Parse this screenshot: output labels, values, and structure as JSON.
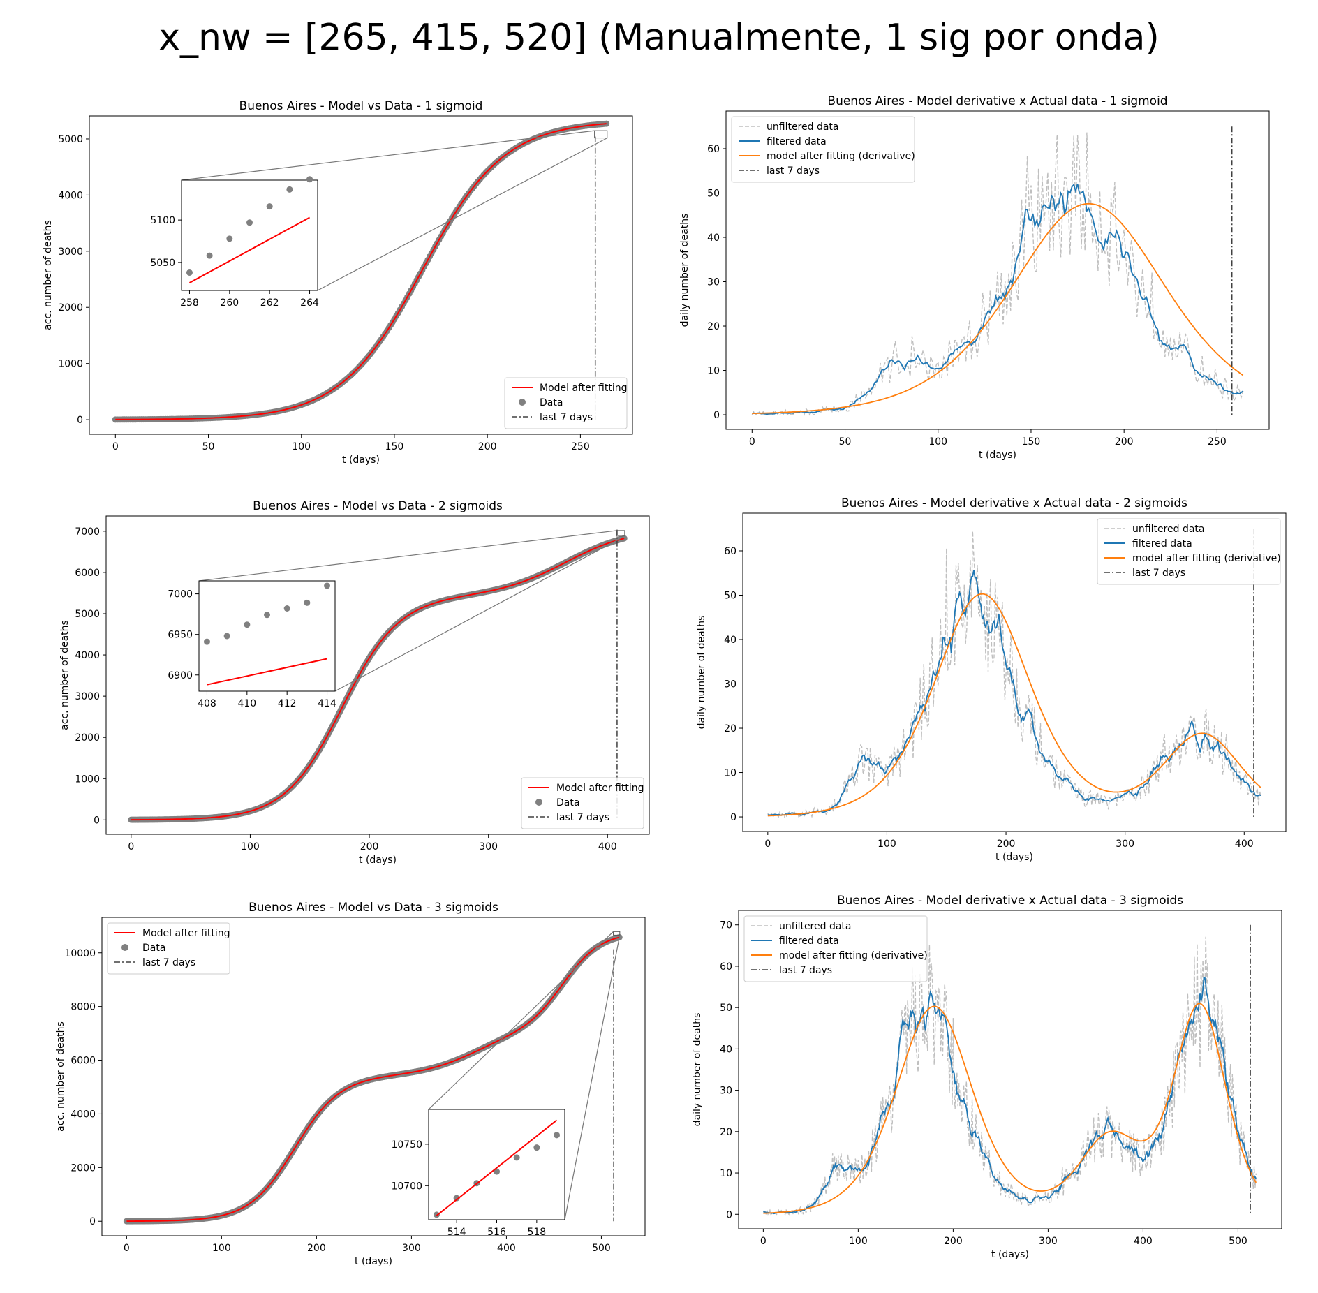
{
  "suptitle": "x_nw = [265, 415, 520] (Manualmente, 1 sig por onda)",
  "colors": {
    "model_red": "#ff0000",
    "data_gray": "#808080",
    "unfiltered": "#bfbfbf",
    "filtered": "#1f77b4",
    "model_orange": "#ff7f0e",
    "last7": "#404040"
  },
  "chart_data": [
    {
      "id": "cum1",
      "type": "scatter",
      "title": "Buenos Aires - Model vs Data - 1 sigmoid",
      "xlabel": "t (days)",
      "ylabel": "acc. number of deaths",
      "xlim": [
        -14,
        278
      ],
      "ylim": [
        -260,
        5410
      ],
      "xticks": [
        0,
        50,
        100,
        150,
        200,
        250
      ],
      "yticks": [
        0,
        1000,
        2000,
        3000,
        4000,
        5000
      ],
      "legend_position": "lower right",
      "legend": [
        "Model after fitting",
        "Data",
        "last 7 days"
      ],
      "last7_x": 258,
      "model": {
        "name": "Model after fitting",
        "components": [
          {
            "a": 5330,
            "t0": 165,
            "s": 22
          }
        ]
      },
      "data_range": [
        0,
        264
      ],
      "inset": {
        "xlim": [
          257.6,
          264.4
        ],
        "ylim": [
          5017,
          5147
        ],
        "xticks": [
          258,
          260,
          262,
          264
        ],
        "yticks": [
          5050,
          5100
        ],
        "x": [
          258,
          259,
          260,
          261,
          262,
          263,
          264
        ],
        "y": [
          5038,
          5058,
          5078,
          5097,
          5116,
          5136,
          5148
        ],
        "model_line": {
          "x": [
            258,
            264
          ],
          "y": [
            5026,
            5103
          ]
        },
        "placement": "upper left"
      }
    },
    {
      "id": "der1",
      "type": "line",
      "title": "Buenos Aires - Model derivative x Actual data - 1 sigmoid",
      "xlabel": "t (days)",
      "ylabel": "daily number of deaths",
      "xlim": [
        -14,
        278
      ],
      "ylim": [
        -3.3,
        68.5
      ],
      "xticks": [
        0,
        50,
        100,
        150,
        200,
        250
      ],
      "yticks": [
        0,
        10,
        20,
        30,
        40,
        50,
        60
      ],
      "legend_position": "upper left",
      "legend": [
        "unfiltered data",
        "filtered data",
        "model after fitting (derivative)",
        "last 7 days"
      ],
      "last7_x": 258,
      "last7_yrange": [
        0,
        65
      ],
      "t_end": 264,
      "model": {
        "components": [
          {
            "a": 5330,
            "t0": 181,
            "s": 28
          }
        ]
      },
      "actual": [
        {
          "a": 4800,
          "t0": 172,
          "s": 24
        },
        {
          "a": 250,
          "t0": 78,
          "s": 7
        }
      ]
    },
    {
      "id": "cum2",
      "type": "scatter",
      "title": "Buenos Aires - Model vs Data - 2 sigmoids",
      "xlabel": "t (days)",
      "ylabel": "acc. number of deaths",
      "xlim": [
        -21,
        435
      ],
      "ylim": [
        -350,
        7370
      ],
      "xticks": [
        0,
        100,
        200,
        300,
        400
      ],
      "yticks": [
        0,
        1000,
        2000,
        3000,
        4000,
        5000,
        6000,
        7000
      ],
      "legend_position": "lower right",
      "legend": [
        "Model after fitting",
        "Data",
        "last 7 days"
      ],
      "last7_x": 408,
      "model": {
        "name": "Model after fitting",
        "components": [
          {
            "a": 5430,
            "t0": 177,
            "s": 24
          },
          {
            "a": 1640,
            "t0": 365,
            "s": 28
          }
        ]
      },
      "data_range": [
        0,
        414
      ],
      "inset": {
        "xlim": [
          407.6,
          414.4
        ],
        "ylim": [
          6880,
          7016
        ],
        "xticks": [
          408,
          410,
          412,
          414
        ],
        "yticks": [
          6900,
          6950,
          7000
        ],
        "x": [
          408,
          409,
          410,
          411,
          412,
          413,
          414
        ],
        "y": [
          6941,
          6948,
          6962,
          6974,
          6982,
          6989,
          7010
        ],
        "model_line": {
          "x": [
            408,
            414
          ],
          "y": [
            6888,
            6920
          ]
        },
        "placement": "upper left"
      }
    },
    {
      "id": "der2",
      "type": "line",
      "title": "Buenos Aires - Model derivative x Actual data - 2 sigmoids",
      "xlabel": "t (days)",
      "ylabel": "daily number of deaths",
      "xlim": [
        -21,
        435
      ],
      "ylim": [
        -3.3,
        68.5
      ],
      "xticks": [
        0,
        100,
        200,
        300,
        400
      ],
      "yticks": [
        0,
        10,
        20,
        30,
        40,
        50,
        60
      ],
      "legend_position": "upper right",
      "legend": [
        "unfiltered data",
        "filtered data",
        "model after fitting (derivative)",
        "last 7 days"
      ],
      "last7_x": 408,
      "last7_yrange": [
        0,
        65
      ],
      "t_end": 414,
      "model": {
        "components": [
          {
            "a": 5430,
            "t0": 180,
            "s": 27
          },
          {
            "a": 1640,
            "t0": 365,
            "s": 22
          }
        ]
      },
      "actual": [
        {
          "a": 4800,
          "t0": 172,
          "s": 24
        },
        {
          "a": 250,
          "t0": 78,
          "s": 7
        },
        {
          "a": 1500,
          "t0": 360,
          "s": 20
        }
      ]
    },
    {
      "id": "cum3",
      "type": "scatter",
      "title": "Buenos Aires - Model vs Data - 3 sigmoids",
      "xlabel": "t (days)",
      "ylabel": "acc. number of deaths",
      "xlim": [
        -26,
        546
      ],
      "ylim": [
        -540,
        11320
      ],
      "xticks": [
        0,
        100,
        200,
        300,
        400,
        500
      ],
      "yticks": [
        0,
        2000,
        4000,
        6000,
        8000,
        10000
      ],
      "legend_position": "upper left",
      "legend": [
        "Model after fitting",
        "Data",
        "last 7 days"
      ],
      "last7_x": 513,
      "model": {
        "name": "Model after fitting",
        "components": [
          {
            "a": 5430,
            "t0": 177,
            "s": 24
          },
          {
            "a": 1640,
            "t0": 365,
            "s": 28
          },
          {
            "a": 3700,
            "t0": 460,
            "s": 20
          }
        ]
      },
      "data_range": [
        0,
        519
      ],
      "inset": {
        "xlim": [
          512.6,
          519.4
        ],
        "ylim": [
          10659,
          10792
        ],
        "xticks": [
          514,
          516,
          518
        ],
        "yticks": [
          10700,
          10750
        ],
        "x": [
          513,
          514,
          515,
          516,
          517,
          518,
          519
        ],
        "y": [
          10665,
          10685,
          10703,
          10717,
          10734,
          10746,
          10761
        ],
        "model_line": {
          "x": [
            513,
            519
          ],
          "y": [
            10664,
            10779
          ]
        },
        "placement": "lower right"
      }
    },
    {
      "id": "der3",
      "type": "line",
      "title": "Buenos Aires - Model derivative x Actual data - 3 sigmoids",
      "xlabel": "t (days)",
      "ylabel": "daily number of deaths",
      "xlim": [
        -26,
        546
      ],
      "ylim": [
        -3.5,
        73.5
      ],
      "xticks": [
        0,
        100,
        200,
        300,
        400,
        500
      ],
      "yticks": [
        0,
        10,
        20,
        30,
        40,
        50,
        60,
        70
      ],
      "legend_position": "upper left",
      "legend": [
        "unfiltered data",
        "filtered data",
        "model after fitting (derivative)",
        "last 7 days"
      ],
      "last7_x": 513,
      "last7_yrange": [
        0,
        70
      ],
      "t_end": 519,
      "model": {
        "components": [
          {
            "a": 5430,
            "t0": 180,
            "s": 27
          },
          {
            "a": 1640,
            "t0": 365,
            "s": 22
          },
          {
            "a": 3700,
            "t0": 460,
            "s": 18.5
          }
        ]
      },
      "actual": [
        {
          "a": 4800,
          "t0": 172,
          "s": 24
        },
        {
          "a": 250,
          "t0": 78,
          "s": 7
        },
        {
          "a": 1500,
          "t0": 360,
          "s": 20
        },
        {
          "a": 3700,
          "t0": 462,
          "s": 18
        }
      ]
    }
  ]
}
